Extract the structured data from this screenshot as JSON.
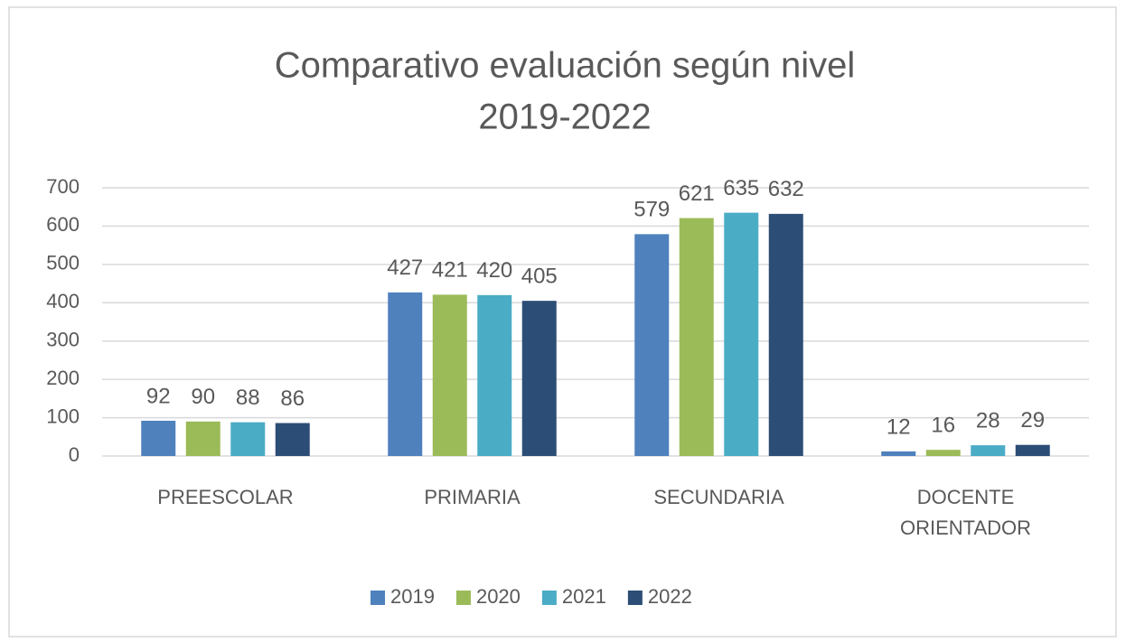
{
  "chart_data": {
    "type": "bar",
    "title": [
      "Comparativo evaluación según nivel",
      "2019-2022"
    ],
    "categories": [
      "PREESCOLAR",
      "PRIMARIA",
      "SECUNDARIA",
      "DOCENTE ORIENTADOR"
    ],
    "series": [
      {
        "name": "2019",
        "color": "#4f81bd",
        "values": [
          92,
          427,
          579,
          12
        ]
      },
      {
        "name": "2020",
        "color": "#9bbb59",
        "values": [
          90,
          421,
          621,
          16
        ]
      },
      {
        "name": "2021",
        "color": "#4bacc6",
        "values": [
          88,
          420,
          635,
          28
        ]
      },
      {
        "name": "2022",
        "color": "#2c4d75",
        "values": [
          86,
          405,
          632,
          29
        ]
      }
    ],
    "ylim": [
      0,
      700
    ],
    "yticks": [
      0,
      100,
      200,
      300,
      400,
      500,
      600,
      700
    ],
    "grid": true,
    "legend": "bottom"
  }
}
